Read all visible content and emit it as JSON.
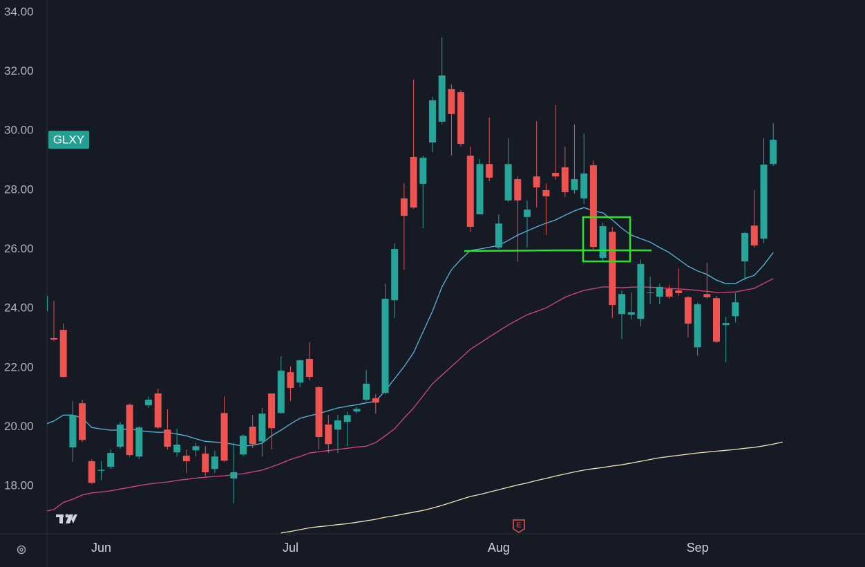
{
  "chart_data": {
    "type": "candlestick",
    "symbol": "GLXY",
    "event_marker": "E",
    "categories": [
      null,
      null,
      null,
      null,
      null,
      null,
      "Jun",
      null,
      null,
      null,
      null,
      null,
      null,
      null,
      null,
      null,
      null,
      null,
      null,
      null,
      null,
      null,
      null,
      null,
      null,
      null,
      "Jul",
      null,
      null,
      null,
      null,
      null,
      null,
      null,
      null,
      null,
      null,
      null,
      null,
      null,
      null,
      null,
      null,
      null,
      null,
      null,
      null,
      null,
      "Aug",
      null,
      null,
      null,
      null,
      null,
      null,
      null,
      null,
      null,
      null,
      null,
      null,
      null,
      null,
      null,
      null,
      null,
      null,
      null,
      null,
      "Sep",
      null,
      null,
      null,
      null,
      null,
      null,
      null,
      null
    ],
    "open": [
      23.91,
      23.0,
      23.28,
      19.31,
      20.8,
      18.84,
      18.52,
      18.65,
      19.33,
      20.75,
      19.0,
      20.73,
      21.13,
      19.91,
      19.14,
      19.03,
      19.21,
      19.1,
      18.58,
      20.47,
      18.26,
      19.07,
      20.01,
      19.51,
      21.13,
      20.47,
      21.85,
      21.5,
      22.3,
      21.34,
      20.08,
      19.91,
      20.17,
      20.52,
      20.92,
      20.97,
      21.15,
      24.28,
      27.72,
      29.12,
      28.21,
      29.61,
      30.31,
      31.41,
      31.31,
      29.16,
      27.18,
      28.88,
      26.06,
      27.65,
      28.37,
      27.09,
      28.46,
      28.0,
      28.58,
      28.77,
      28.0,
      27.72,
      28.84,
      25.71,
      26.59,
      23.81,
      23.79,
      23.65,
      24.52,
      24.4,
      24.66,
      24.61,
      24.38,
      22.69,
      24.49,
      24.35,
      23.44,
      23.74,
      25.59,
      26.8,
      26.36,
      28.88
    ],
    "high": [
      24.42,
      24.26,
      23.49,
      20.87,
      20.92,
      18.91,
      18.86,
      19.24,
      20.17,
      20.8,
      20.03,
      21.03,
      21.29,
      20.59,
      19.94,
      19.24,
      19.47,
      19.35,
      19.19,
      21.03,
      19.47,
      19.75,
      20.4,
      20.64,
      21.13,
      22.39,
      22.04,
      22.27,
      22.86,
      21.39,
      20.4,
      20.4,
      20.52,
      20.68,
      21.92,
      21.1,
      24.84,
      26.2,
      28.23,
      31.73,
      29.16,
      31.15,
      33.16,
      31.57,
      31.38,
      29.47,
      29.05,
      30.45,
      27.18,
      29.75,
      28.46,
      27.65,
      30.33,
      28.23,
      30.87,
      29.47,
      30.22,
      29.91,
      29.0,
      26.9,
      26.76,
      24.61,
      24.54,
      25.66,
      25.08,
      24.84,
      24.8,
      25.36,
      24.42,
      24.19,
      25.54,
      24.42,
      23.72,
      24.52,
      26.59,
      28.0,
      29.75,
      30.26
    ],
    "low": [
      23.91,
      22.9,
      21.67,
      18.82,
      19.5,
      18.07,
      18.2,
      18.58,
      19.26,
      19.0,
      18.91,
      20.64,
      19.94,
      19.24,
      19.0,
      18.44,
      19.0,
      18.3,
      18.44,
      18.82,
      17.41,
      19.0,
      19.28,
      19.0,
      19.24,
      20.45,
      20.87,
      21.34,
      21.57,
      19.24,
      19.12,
      19.12,
      19.35,
      20.45,
      20.87,
      20.45,
      21.1,
      23.67,
      25.31,
      27.37,
      26.71,
      29.28,
      30.22,
      29.16,
      29.47,
      26.59,
      27.18,
      28.3,
      26.01,
      27.6,
      25.59,
      26.06,
      27.41,
      26.48,
      28.35,
      27.76,
      27.88,
      27.53,
      26.01,
      25.59,
      23.67,
      22.97,
      23.63,
      23.39,
      24.14,
      24.14,
      24.33,
      24.42,
      23.02,
      22.41,
      24.33,
      22.83,
      22.18,
      23.53,
      24.96,
      26.06,
      26.2,
      28.81
    ],
    "close": [
      24.42,
      22.95,
      21.69,
      20.4,
      19.56,
      18.11,
      18.55,
      19.12,
      20.08,
      19.05,
      19.98,
      20.92,
      19.98,
      19.33,
      19.4,
      18.84,
      19.35,
      18.47,
      19.0,
      18.86,
      18.47,
      19.7,
      19.42,
      20.45,
      19.96,
      21.9,
      21.32,
      22.25,
      21.69,
      19.66,
      19.42,
      20.22,
      20.4,
      20.61,
      21.46,
      20.82,
      24.33,
      26.01,
      27.13,
      27.41,
      29.09,
      31.03,
      31.87,
      30.57,
      29.56,
      26.76,
      28.88,
      28.42,
      26.87,
      28.88,
      27.65,
      27.34,
      28.09,
      27.79,
      28.46,
      27.93,
      28.37,
      28.56,
      26.08,
      26.78,
      24.12,
      24.49,
      23.88,
      25.5,
      24.54,
      24.73,
      24.4,
      24.52,
      23.49,
      24.14,
      24.38,
      22.88,
      23.51,
      24.21,
      26.55,
      26.13,
      28.86,
      29.7
    ],
    "up_color": "#26a69a",
    "down_color": "#ef5350",
    "ylim": [
      16.39,
      34.42
    ],
    "yticks": [
      {
        "value": 18,
        "label": "18.00"
      },
      {
        "value": 20,
        "label": "20.00"
      },
      {
        "value": 22,
        "label": "22.00"
      },
      {
        "value": 24,
        "label": "24.00"
      },
      {
        "value": 26,
        "label": "26.00"
      },
      {
        "value": 28,
        "label": "28.00"
      },
      {
        "value": 30,
        "label": "30.00"
      },
      {
        "value": 32,
        "label": "32.00"
      },
      {
        "value": 34,
        "label": "34.00"
      }
    ],
    "overlays": [
      {
        "type": "line",
        "color": "#5ab8d8",
        "values": [
          20.08,
          20.2,
          20.4,
          20.4,
          20.3,
          19.98,
          19.93,
          19.89,
          19.9,
          19.94,
          19.88,
          19.84,
          19.82,
          19.82,
          19.76,
          19.7,
          19.6,
          19.51,
          19.49,
          19.47,
          19.41,
          19.35,
          19.38,
          19.45,
          19.7,
          19.89,
          20.1,
          20.29,
          20.38,
          20.45,
          20.55,
          20.64,
          20.7,
          20.75,
          20.81,
          20.87,
          21.22,
          21.63,
          22.04,
          22.51,
          23.21,
          23.91,
          24.73,
          25.31,
          25.66,
          25.96,
          26.01,
          26.07,
          26.13,
          26.3,
          26.48,
          26.62,
          26.76,
          26.88,
          26.99,
          27.15,
          27.3,
          27.41,
          27.3,
          27.23,
          26.99,
          26.71,
          26.48,
          26.36,
          26.24,
          26.06,
          25.89,
          25.66,
          25.43,
          25.27,
          25.15,
          24.96,
          24.84,
          24.84,
          25.01,
          25.12,
          25.47,
          25.89
        ]
      },
      {
        "type": "line",
        "color": "#d9477f",
        "values": [
          17.15,
          17.21,
          17.45,
          17.56,
          17.7,
          17.77,
          17.8,
          17.84,
          17.9,
          17.96,
          18.02,
          18.07,
          18.11,
          18.14,
          18.19,
          18.23,
          18.27,
          18.3,
          18.33,
          18.35,
          18.39,
          18.42,
          18.48,
          18.54,
          18.65,
          18.77,
          18.9,
          19.0,
          19.12,
          19.16,
          19.2,
          19.24,
          19.28,
          19.32,
          19.35,
          19.47,
          19.7,
          19.94,
          20.3,
          20.64,
          21.05,
          21.46,
          21.75,
          22.04,
          22.33,
          22.62,
          22.83,
          23.04,
          23.24,
          23.44,
          23.62,
          23.79,
          23.9,
          24.02,
          24.2,
          24.38,
          24.5,
          24.61,
          24.67,
          24.73,
          24.72,
          24.7,
          24.72,
          24.73,
          24.72,
          24.7,
          24.68,
          24.66,
          24.64,
          24.61,
          24.58,
          24.54,
          24.55,
          24.56,
          24.62,
          24.68,
          24.85,
          25.01
        ]
      },
      {
        "type": "line",
        "color": "#efe6b4",
        "values": [
          null,
          null,
          null,
          null,
          null,
          null,
          null,
          null,
          null,
          null,
          null,
          null,
          null,
          null,
          null,
          null,
          null,
          null,
          null,
          null,
          null,
          null,
          null,
          null,
          null,
          16.42,
          16.47,
          16.53,
          16.59,
          16.63,
          16.66,
          16.7,
          16.73,
          16.78,
          16.83,
          16.88,
          16.95,
          17.0,
          17.06,
          17.12,
          17.18,
          17.26,
          17.35,
          17.45,
          17.55,
          17.65,
          17.72,
          17.8,
          17.88,
          17.96,
          18.04,
          18.11,
          18.19,
          18.26,
          18.34,
          18.41,
          18.48,
          18.54,
          18.59,
          18.63,
          18.68,
          18.72,
          18.78,
          18.84,
          18.9,
          18.96,
          19.0,
          19.04,
          19.08,
          19.12,
          19.15,
          19.18,
          19.21,
          19.24,
          19.28,
          19.31,
          19.36,
          19.42,
          19.49
        ]
      }
    ]
  }
}
